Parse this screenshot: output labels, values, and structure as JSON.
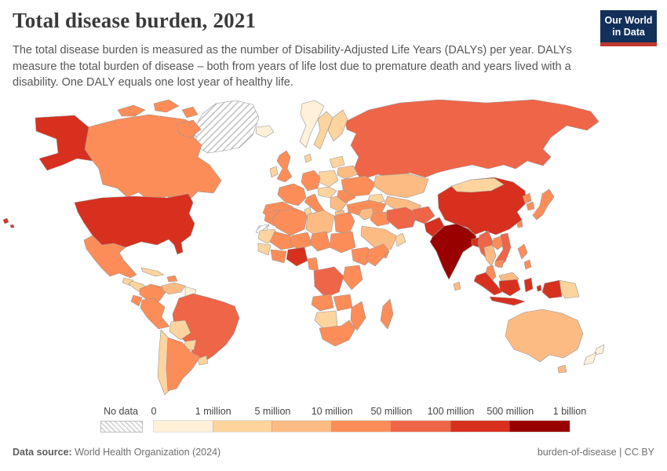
{
  "header": {
    "title": "Total disease burden, 2021",
    "subtitle": "The total disease burden is measured as the number of Disability-Adjusted Life Years (DALYs) per year. DALYs measure the total burden of disease – both from years of life lost due to premature death and years lived with a disability. One DALY equals one lost year of healthy life.",
    "logo": {
      "line1": "Our World",
      "line2": "in Data",
      "bg_color": "#12305a",
      "accent_color": "#c0362c"
    }
  },
  "legend": {
    "no_data_label": "No data",
    "tick_labels": [
      "0",
      "1 million",
      "5 million",
      "10 million",
      "50 million",
      "100 million",
      "500 million",
      "1 billion"
    ]
  },
  "footer": {
    "source_label": "Data source:",
    "source_value": "World Health Organization (2024)",
    "license": "burden-of-disease | CC BY"
  },
  "chart_data": {
    "type": "choropleth-map",
    "title": "Total disease burden, 2021",
    "year": "2021",
    "unit": "Disability-Adjusted Life Years (DALYs) per year",
    "no_data": {
      "label": "No data",
      "pattern": "diagonal-hatch"
    },
    "bins": [
      {
        "range": "0–1 million",
        "color": "#fef0d9"
      },
      {
        "range": "1–5 million",
        "color": "#fdd49e"
      },
      {
        "range": "5–10 million",
        "color": "#fdbb84"
      },
      {
        "range": "10–50 million",
        "color": "#fc8d59"
      },
      {
        "range": "50–100 million",
        "color": "#ef6548"
      },
      {
        "range": "100–500 million",
        "color": "#d7301f"
      },
      {
        "range": "500 million–1 billion",
        "color": "#990000"
      }
    ],
    "regions": [
      {
        "key": "greenland",
        "name": "Greenland",
        "bin": null
      },
      {
        "key": "canada",
        "name": "Canada",
        "bin": 3
      },
      {
        "key": "alaska",
        "name": "United States (Alaska)",
        "bin": 5
      },
      {
        "key": "usa",
        "name": "United States",
        "bin": 5
      },
      {
        "key": "hawaii",
        "name": "United States (Hawaii)",
        "bin": 5
      },
      {
        "key": "mexico",
        "name": "Mexico",
        "bin": 3
      },
      {
        "key": "guatemala",
        "name": "Guatemala",
        "bin": 1
      },
      {
        "key": "honduras-nicaragua",
        "name": "Honduras & Nicaragua",
        "bin": 1
      },
      {
        "key": "panama-costa-rica",
        "name": "Costa Rica & Panama",
        "bin": 1
      },
      {
        "key": "cuba",
        "name": "Cuba",
        "bin": 1
      },
      {
        "key": "hispaniola",
        "name": "Haiti & Dominican Republic",
        "bin": 3
      },
      {
        "key": "colombia",
        "name": "Colombia",
        "bin": 3
      },
      {
        "key": "venezuela",
        "name": "Venezuela",
        "bin": 2
      },
      {
        "key": "guyanas",
        "name": "Guyana & Suriname",
        "bin": 0
      },
      {
        "key": "ecuador",
        "name": "Ecuador",
        "bin": 3
      },
      {
        "key": "peru",
        "name": "Peru",
        "bin": 3
      },
      {
        "key": "brazil",
        "name": "Brazil",
        "bin": 4
      },
      {
        "key": "bolivia",
        "name": "Bolivia",
        "bin": 1
      },
      {
        "key": "paraguay",
        "name": "Paraguay",
        "bin": 1
      },
      {
        "key": "uruguay",
        "name": "Uruguay",
        "bin": 1
      },
      {
        "key": "chile",
        "name": "Chile",
        "bin": 1
      },
      {
        "key": "argentina",
        "name": "Argentina",
        "bin": 3
      },
      {
        "key": "iceland",
        "name": "Iceland",
        "bin": 0
      },
      {
        "key": "russia",
        "name": "Russia",
        "bin": 4
      },
      {
        "key": "norway",
        "name": "Norway",
        "bin": 0
      },
      {
        "key": "sweden",
        "name": "Sweden",
        "bin": 1
      },
      {
        "key": "finland",
        "name": "Finland",
        "bin": 1
      },
      {
        "key": "uk",
        "name": "United Kingdom",
        "bin": 3
      },
      {
        "key": "ireland",
        "name": "Ireland",
        "bin": 1
      },
      {
        "key": "denmark",
        "name": "Denmark",
        "bin": 1
      },
      {
        "key": "baltics",
        "name": "Baltic states",
        "bin": 1
      },
      {
        "key": "belarus",
        "name": "Belarus",
        "bin": 2
      },
      {
        "key": "poland",
        "name": "Poland",
        "bin": 1
      },
      {
        "key": "germany",
        "name": "Germany",
        "bin": 3
      },
      {
        "key": "france",
        "name": "France",
        "bin": 3
      },
      {
        "key": "spain",
        "name": "Spain & Portugal",
        "bin": 3
      },
      {
        "key": "italy",
        "name": "Italy",
        "bin": 3
      },
      {
        "key": "central-europe",
        "name": "Central Europe",
        "bin": 1
      },
      {
        "key": "balkans",
        "name": "Balkans",
        "bin": 2
      },
      {
        "key": "greece",
        "name": "Greece",
        "bin": 2
      },
      {
        "key": "romania",
        "name": "Romania",
        "bin": 3
      },
      {
        "key": "ukraine",
        "name": "Ukraine",
        "bin": 3
      },
      {
        "key": "kazakhstan",
        "name": "Kazakhstan",
        "bin": 2
      },
      {
        "key": "caucasus",
        "name": "Caucasus",
        "bin": 1
      },
      {
        "key": "turkey",
        "name": "Turkey",
        "bin": 3
      },
      {
        "key": "central-asia",
        "name": "Central Asia",
        "bin": 2
      },
      {
        "key": "syria-jordan",
        "name": "Syria & Jordan",
        "bin": 2
      },
      {
        "key": "iraq",
        "name": "Iraq",
        "bin": 3
      },
      {
        "key": "iran",
        "name": "Iran",
        "bin": 4
      },
      {
        "key": "saudi",
        "name": "Saudi Arabia",
        "bin": 2
      },
      {
        "key": "yemen",
        "name": "Yemen",
        "bin": 3
      },
      {
        "key": "oman",
        "name": "Oman & UAE",
        "bin": 1
      },
      {
        "key": "afghanistan",
        "name": "Afghanistan",
        "bin": 4
      },
      {
        "key": "pakistan",
        "name": "Pakistan",
        "bin": 5
      },
      {
        "key": "china",
        "name": "China",
        "bin": 5
      },
      {
        "key": "mongolia",
        "name": "Mongolia",
        "bin": 1
      },
      {
        "key": "nepal",
        "name": "Nepal",
        "bin": 2
      },
      {
        "key": "india",
        "name": "India",
        "bin": 6
      },
      {
        "key": "sri-lanka",
        "name": "Sri Lanka",
        "bin": 2
      },
      {
        "key": "bangladesh",
        "name": "Bangladesh",
        "bin": 5
      },
      {
        "key": "myanmar",
        "name": "Myanmar",
        "bin": 4
      },
      {
        "key": "thailand",
        "name": "Thailand",
        "bin": 2
      },
      {
        "key": "laos",
        "name": "Laos",
        "bin": 3
      },
      {
        "key": "vietnam",
        "name": "Vietnam",
        "bin": 4
      },
      {
        "key": "cambodia",
        "name": "Cambodia",
        "bin": 3
      },
      {
        "key": "malay-peninsula",
        "name": "Malaysia (peninsula)",
        "bin": 3
      },
      {
        "key": "north-korea",
        "name": "North Korea",
        "bin": 3
      },
      {
        "key": "south-korea",
        "name": "South Korea",
        "bin": 3
      },
      {
        "key": "japan",
        "name": "Japan",
        "bin": 3
      },
      {
        "key": "taiwan",
        "name": "Taiwan",
        "bin": 3
      },
      {
        "key": "philippines",
        "name": "Philippines",
        "bin": 3
      },
      {
        "key": "sumatra",
        "name": "Indonesia (Sumatra)",
        "bin": 5
      },
      {
        "key": "borneo-malaysia",
        "name": "Malaysia (Borneo)",
        "bin": 2
      },
      {
        "key": "borneo-indonesia",
        "name": "Indonesia (Kalimantan)",
        "bin": 5
      },
      {
        "key": "java",
        "name": "Indonesia (Java)",
        "bin": 5
      },
      {
        "key": "sulawesi",
        "name": "Indonesia (Sulawesi)",
        "bin": 5
      },
      {
        "key": "moluccas",
        "name": "Indonesia (Moluccas)",
        "bin": 5
      },
      {
        "key": "west-papua",
        "name": "Indonesia (Papua)",
        "bin": 5
      },
      {
        "key": "papua-new-guinea",
        "name": "Papua New Guinea",
        "bin": 1
      },
      {
        "key": "morocco",
        "name": "Morocco",
        "bin": 3
      },
      {
        "key": "western-sahara",
        "name": "Western Sahara",
        "bin": null
      },
      {
        "key": "algeria",
        "name": "Algeria",
        "bin": 3
      },
      {
        "key": "tunisia",
        "name": "Tunisia",
        "bin": 1
      },
      {
        "key": "libya",
        "name": "Libya",
        "bin": 2
      },
      {
        "key": "egypt",
        "name": "Egypt",
        "bin": 3
      },
      {
        "key": "mauritania",
        "name": "Mauritania",
        "bin": 1
      },
      {
        "key": "mali",
        "name": "Mali",
        "bin": 3
      },
      {
        "key": "niger",
        "name": "Niger",
        "bin": 3
      },
      {
        "key": "chad",
        "name": "Chad",
        "bin": 3
      },
      {
        "key": "sudan",
        "name": "Sudan",
        "bin": 3
      },
      {
        "key": "senegal-guinea",
        "name": "Senegal & Guinea",
        "bin": 1
      },
      {
        "key": "cote-divoire-ghana",
        "name": "Côte d'Ivoire & Ghana",
        "bin": 3
      },
      {
        "key": "nigeria",
        "name": "Nigeria",
        "bin": 5
      },
      {
        "key": "cameroon-gabon",
        "name": "Cameroon & Gabon",
        "bin": 3
      },
      {
        "key": "ethiopia",
        "name": "Ethiopia",
        "bin": 3
      },
      {
        "key": "somalia",
        "name": "Somalia",
        "bin": 3
      },
      {
        "key": "kenya-tanzania",
        "name": "Kenya & Tanzania",
        "bin": 3
      },
      {
        "key": "drc",
        "name": "Democratic Republic of Congo",
        "bin": 4
      },
      {
        "key": "angola",
        "name": "Angola",
        "bin": 3
      },
      {
        "key": "zambia-zimbabwe",
        "name": "Zambia & Zimbabwe",
        "bin": 3
      },
      {
        "key": "mozambique",
        "name": "Mozambique",
        "bin": 3
      },
      {
        "key": "namibia-botswana",
        "name": "Namibia & Botswana",
        "bin": 1
      },
      {
        "key": "south-africa",
        "name": "South Africa",
        "bin": 3
      },
      {
        "key": "madagascar",
        "name": "Madagascar",
        "bin": 3
      },
      {
        "key": "australia",
        "name": "Australia",
        "bin": 2
      },
      {
        "key": "tasmania",
        "name": "Australia (Tasmania)",
        "bin": 2
      },
      {
        "key": "new-zealand",
        "name": "New Zealand",
        "bin": 0
      }
    ]
  }
}
